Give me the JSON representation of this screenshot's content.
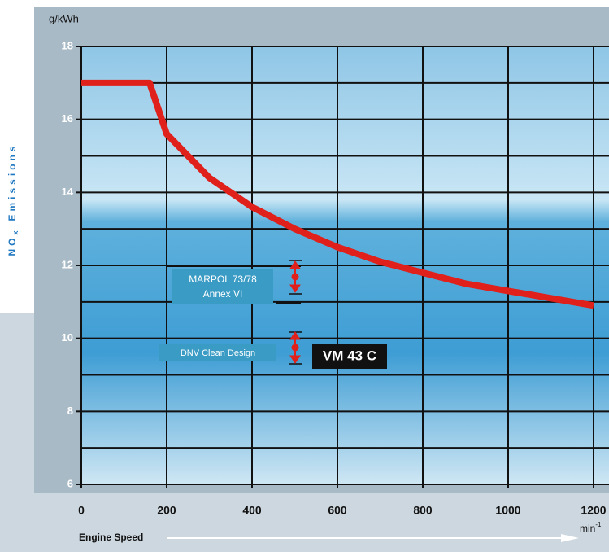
{
  "chart_data": {
    "type": "line",
    "y_unit": "g/kWh",
    "y_label": "NO",
    "y_label_sub": "x",
    "y_label_end": "Emissions",
    "x_label": "Engine Speed",
    "x_unit": "min",
    "x_unit_exp": "-1",
    "xlim": [
      0,
      1200
    ],
    "xticks": [
      0,
      200,
      400,
      600,
      800,
      1000,
      1200
    ],
    "ylim": [
      6,
      18
    ],
    "yticks": [
      6,
      8,
      10,
      12,
      14,
      16,
      18
    ],
    "y_minor_grid": [
      7,
      9,
      11,
      13,
      15,
      17
    ],
    "grid": true,
    "series": [
      {
        "color": "#e0201b",
        "x": [
          0,
          160,
          200,
          300,
          400,
          500,
          600,
          700,
          800,
          900,
          1000,
          1100,
          1200
        ],
        "values": [
          17,
          17,
          15.6,
          14.4,
          13.6,
          13.0,
          12.5,
          12.1,
          11.8,
          11.5,
          11.3,
          11.1,
          10.9
        ]
      }
    ],
    "annotations": [
      "MARPOL 73/78",
      "Annex VI",
      "DNV Clean Design",
      "VM 43 C"
    ]
  }
}
